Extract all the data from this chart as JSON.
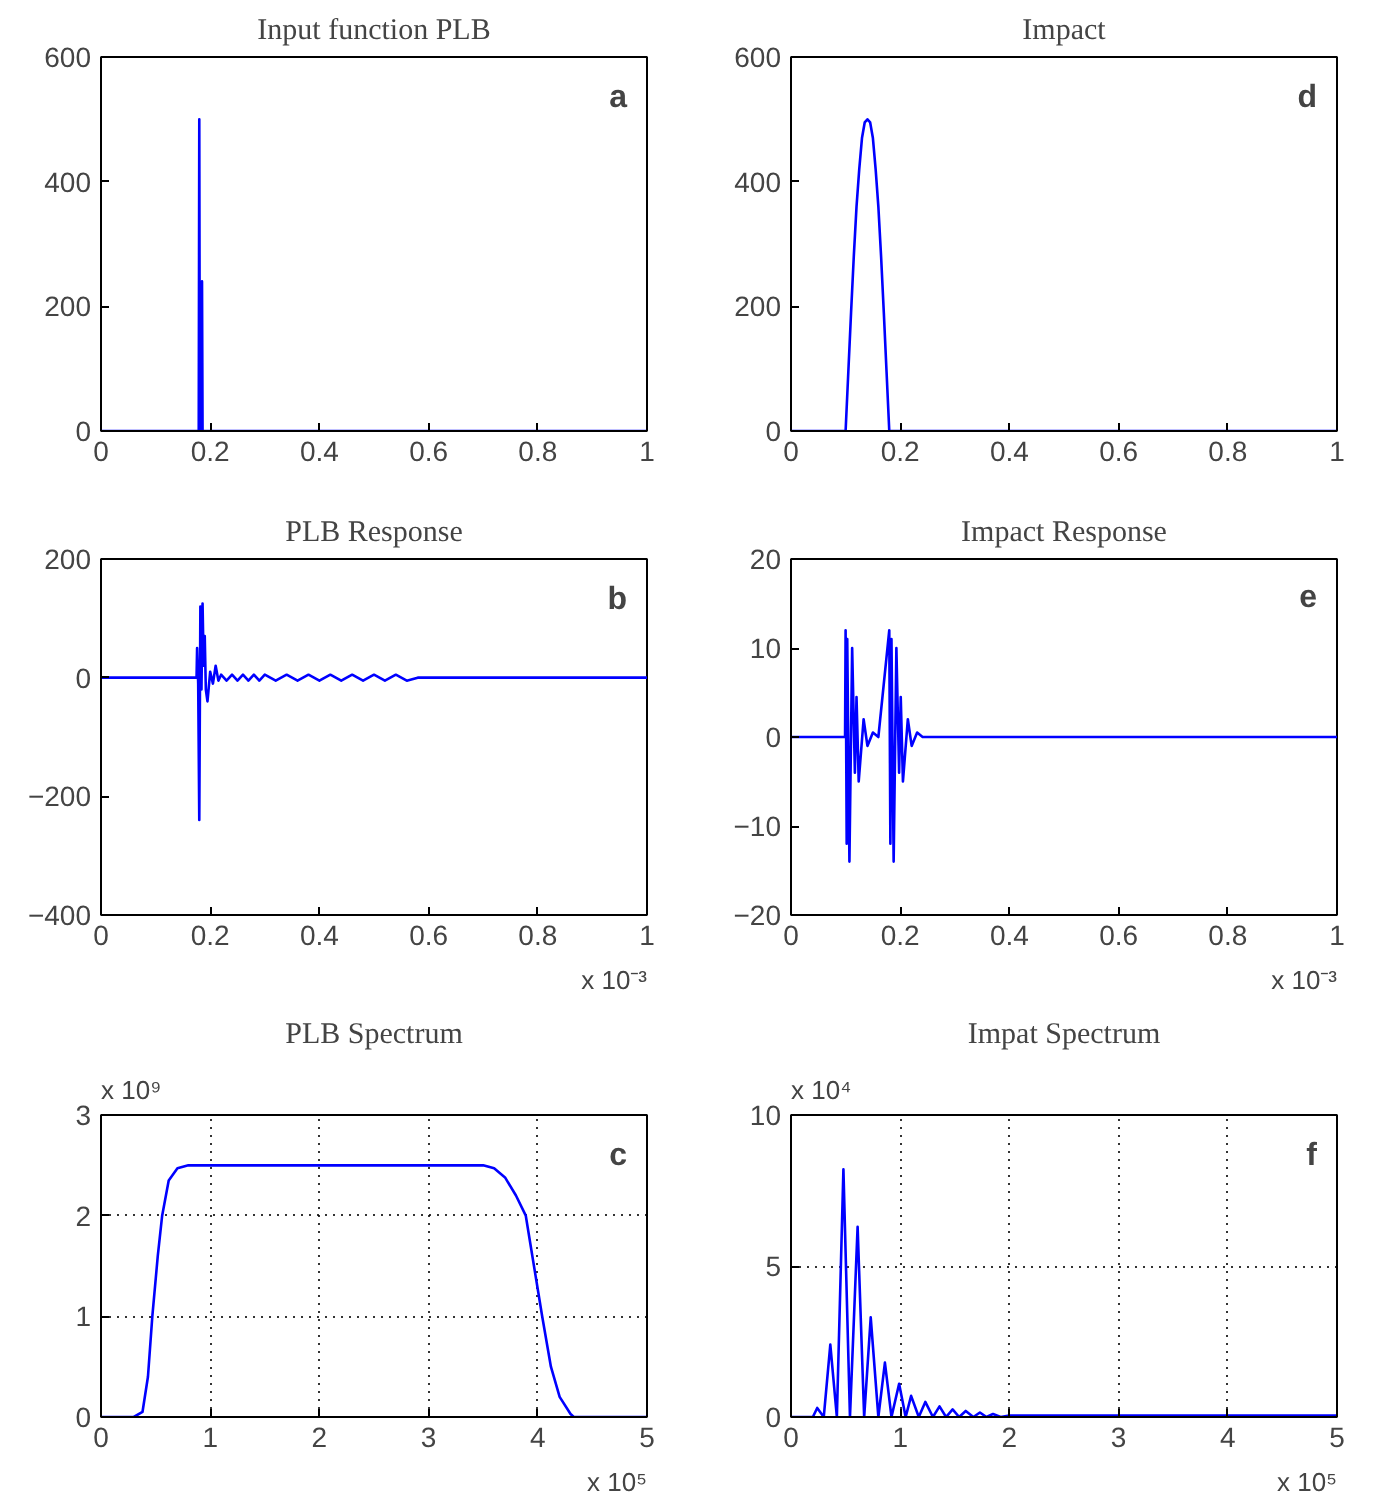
{
  "chart_data": [
    {
      "type": "line",
      "title": "Input function PLB",
      "annotations": [
        "a"
      ],
      "x": [
        0,
        0.179,
        0.18,
        0.181,
        0.184,
        0.185,
        0.186,
        1
      ],
      "series": [
        {
          "color": "#0000ff",
          "values": [
            0,
            0,
            500,
            0,
            0,
            240,
            0,
            0
          ]
        }
      ],
      "xlim": [
        0,
        1
      ],
      "xticks": [
        0,
        0.2,
        0.4,
        0.6,
        0.8,
        1
      ],
      "ylim": [
        0,
        600
      ],
      "yticks": [
        0,
        200,
        400,
        600
      ],
      "grid": false
    },
    {
      "type": "line",
      "title": "Impact",
      "annotations": [
        "d"
      ],
      "x": [
        0,
        0.1,
        0.105,
        0.11,
        0.115,
        0.12,
        0.125,
        0.13,
        0.135,
        0.14,
        0.145,
        0.15,
        0.155,
        0.16,
        0.165,
        0.17,
        0.175,
        0.18,
        1
      ],
      "series": [
        {
          "color": "#0000ff",
          "values": [
            0,
            0,
            95,
            190,
            280,
            360,
            420,
            470,
            495,
            500,
            495,
            470,
            420,
            360,
            280,
            190,
            95,
            0,
            0
          ]
        }
      ],
      "xlim": [
        0,
        1
      ],
      "xticks": [
        0,
        0.2,
        0.4,
        0.6,
        0.8,
        1
      ],
      "ylim": [
        0,
        600
      ],
      "yticks": [
        0,
        200,
        400,
        600
      ],
      "grid": false
    },
    {
      "type": "line",
      "title": "PLB Response",
      "xlabel": "x 10⁻³",
      "annotations": [
        "b"
      ],
      "x": [
        0,
        0.175,
        0.176,
        0.178,
        0.18,
        0.182,
        0.184,
        0.186,
        0.188,
        0.19,
        0.192,
        0.195,
        0.2,
        0.205,
        0.21,
        0.215,
        0.22,
        0.23,
        0.24,
        0.25,
        0.26,
        0.27,
        0.28,
        0.29,
        0.3,
        0.32,
        0.34,
        0.36,
        0.38,
        0.4,
        0.42,
        0.44,
        0.46,
        0.48,
        0.5,
        0.52,
        0.54,
        0.56,
        0.58,
        1
      ],
      "series": [
        {
          "color": "#0000ff",
          "values": [
            0,
            0,
            50,
            -10,
            -240,
            120,
            -20,
            125,
            20,
            70,
            -20,
            -40,
            10,
            -10,
            20,
            -5,
            5,
            -5,
            5,
            -5,
            5,
            -5,
            5,
            -5,
            5,
            -5,
            5,
            -5,
            5,
            -5,
            5,
            -5,
            5,
            -5,
            5,
            -5,
            5,
            -5,
            0,
            0
          ]
        }
      ],
      "xlim": [
        0,
        1
      ],
      "xticks": [
        0,
        0.2,
        0.4,
        0.6,
        0.8,
        1
      ],
      "ylim": [
        -400,
        200
      ],
      "yticks": [
        -400,
        -200,
        0,
        200
      ],
      "grid": false
    },
    {
      "type": "line",
      "title": "Impact Response",
      "xlabel": "x 10⁻³",
      "annotations": [
        "e"
      ],
      "x": [
        0,
        0.099,
        0.1,
        0.102,
        0.103,
        0.107,
        0.112,
        0.117,
        0.12,
        0.124,
        0.133,
        0.14,
        0.15,
        0.16,
        0.18,
        0.182,
        0.184,
        0.188,
        0.193,
        0.198,
        0.201,
        0.205,
        0.214,
        0.221,
        0.231,
        0.241,
        1
      ],
      "series": [
        {
          "color": "#0000ff",
          "values": [
            0,
            0,
            12,
            -12,
            11,
            -14,
            10,
            -4,
            4.5,
            -5,
            2,
            -1,
            0.5,
            0,
            12,
            -12,
            11,
            -14,
            10,
            -4,
            4.5,
            -5,
            2,
            -1,
            0.5,
            0,
            0
          ]
        }
      ],
      "xlim": [
        0,
        1
      ],
      "xticks": [
        0,
        0.2,
        0.4,
        0.6,
        0.8,
        1
      ],
      "ylim": [
        -20,
        20
      ],
      "yticks": [
        -20,
        -10,
        0,
        10,
        20
      ],
      "grid": false
    },
    {
      "type": "line",
      "title": "PLB Spectrum",
      "xlabel": "x 10⁵",
      "ylabel": "x 10⁹",
      "annotations": [
        "c"
      ],
      "x": [
        0,
        0.3,
        0.38,
        0.43,
        0.47,
        0.52,
        0.56,
        0.62,
        0.7,
        0.8,
        3.5,
        3.6,
        3.7,
        3.8,
        3.89,
        3.95,
        4.04,
        4.12,
        4.2,
        4.3,
        4.33,
        5
      ],
      "series": [
        {
          "color": "#0000ff",
          "values": [
            0,
            0,
            0.05,
            0.4,
            1,
            1.6,
            2,
            2.35,
            2.47,
            2.5,
            2.5,
            2.47,
            2.38,
            2.2,
            2,
            1.6,
            1,
            0.5,
            0.2,
            0.03,
            0,
            0
          ]
        }
      ],
      "xlim": [
        0,
        5
      ],
      "xticks": [
        0,
        1,
        2,
        3,
        4,
        5
      ],
      "ylim": [
        0,
        3
      ],
      "yticks": [
        0,
        1,
        2,
        3
      ],
      "grid": true
    },
    {
      "type": "line",
      "title": "Impat Spectrum",
      "xlabel": "x 10⁵",
      "ylabel": "x 10⁴",
      "annotations": [
        "f"
      ],
      "x": [
        0,
        0.2,
        0.24,
        0.3,
        0.36,
        0.42,
        0.48,
        0.54,
        0.61,
        0.67,
        0.73,
        0.8,
        0.86,
        0.92,
        0.99,
        1.05,
        1.1,
        1.17,
        1.23,
        1.3,
        1.36,
        1.42,
        1.48,
        1.54,
        1.6,
        1.67,
        1.73,
        1.79,
        1.85,
        1.92,
        2.0,
        2.5,
        3.0,
        3.5,
        4.0,
        4.5,
        5
      ],
      "series": [
        {
          "color": "#0000ff",
          "values": [
            0,
            0,
            0.3,
            0,
            2.4,
            0,
            8.2,
            0,
            6.3,
            0,
            3.3,
            0,
            1.8,
            0,
            1.1,
            0,
            0.7,
            0,
            0.5,
            0,
            0.35,
            0,
            0.25,
            0,
            0.2,
            0,
            0.15,
            0,
            0.1,
            0,
            0.05,
            0.05,
            0.05,
            0.05,
            0.05,
            0.05,
            0.05
          ]
        }
      ],
      "xlim": [
        0,
        5
      ],
      "xticks": [
        0,
        1,
        2,
        3,
        4,
        5
      ],
      "ylim": [
        0,
        10
      ],
      "yticks": [
        0,
        5,
        10
      ],
      "grid": true
    }
  ]
}
